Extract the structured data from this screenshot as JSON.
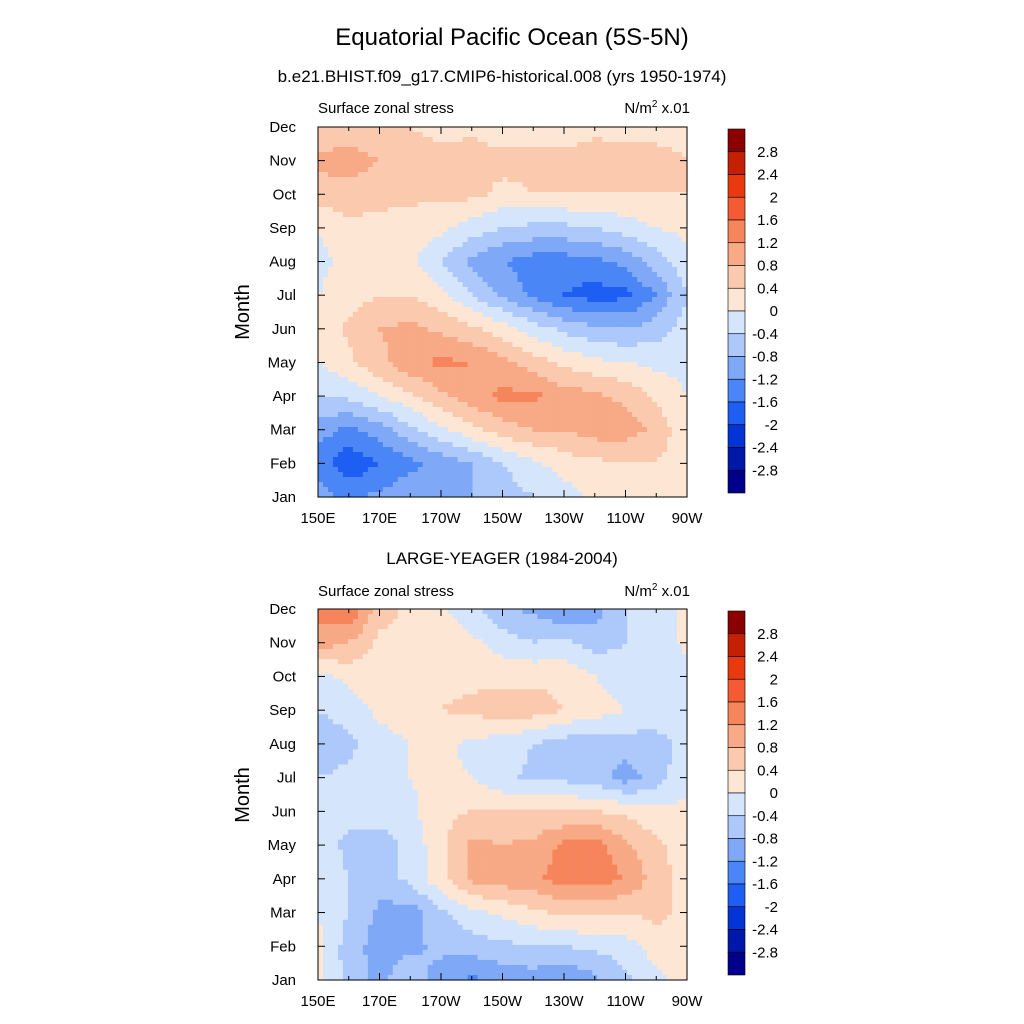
{
  "figure": {
    "title": "Equatorial Pacific Ocean (5S-5N)"
  },
  "palette": [
    "#00008b",
    "#0018a8",
    "#0433d6",
    "#1f5ef2",
    "#4a86f6",
    "#7fa9f7",
    "#adc8fa",
    "#d5e5fc",
    "#fde6d4",
    "#fbcaae",
    "#f8a985",
    "#f6855c",
    "#f45a34",
    "#e8390f",
    "#c42004",
    "#8b0000"
  ],
  "chart_data": [
    {
      "type": "heatmap",
      "subtitle": "b.e21.BHIST.f09_g17.CMIP6-historical.008 (yrs 1950-1974)",
      "left_label": "Surface zonal stress",
      "right_label_base": "N/m",
      "right_label_sup": "2",
      "right_label_scale": " x.01",
      "ylabel": "Month",
      "x_ticks": [
        "150E",
        "170E",
        "170W",
        "150W",
        "130W",
        "110W",
        "90W"
      ],
      "y_ticks": [
        "Jan",
        "Feb",
        "Mar",
        "Apr",
        "May",
        "Jun",
        "Jul",
        "Aug",
        "Sep",
        "Oct",
        "Nov",
        "Dec"
      ],
      "colorbar_levels": [
        "2.8",
        "2.4",
        "2",
        "1.6",
        "1.2",
        "0.8",
        "0.4",
        "0",
        "-0.4",
        "-0.8",
        "-1.2",
        "-1.6",
        "-2",
        "-2.4",
        "-2.8"
      ],
      "grid": {
        "x": [
          150,
          160,
          170,
          180,
          190,
          200,
          210,
          220,
          230,
          240,
          250,
          260,
          270
        ],
        "y": [
          "Jan",
          "Feb",
          "Mar",
          "Apr",
          "May",
          "Jun",
          "Jul",
          "Aug",
          "Sep",
          "Oct",
          "Nov",
          "Dec"
        ],
        "z": [
          [
            -1.0,
            -1.3,
            -1.1,
            -0.9,
            -0.9,
            -0.8,
            -0.6,
            -0.4,
            -0.2,
            0.1,
            0.3,
            0.3,
            0.1
          ],
          [
            -1.4,
            -1.9,
            -1.6,
            -1.3,
            -1.1,
            -0.8,
            -0.4,
            -0.1,
            0.2,
            0.3,
            0.4,
            0.4,
            0.1
          ],
          [
            -1.0,
            -1.3,
            -1.0,
            -0.5,
            -0.1,
            0.3,
            0.6,
            0.8,
            0.8,
            1.0,
            1.0,
            0.7,
            0.1
          ],
          [
            -0.4,
            -0.3,
            0.0,
            0.3,
            0.7,
            1.0,
            1.3,
            1.3,
            1.0,
            0.9,
            0.7,
            0.3,
            0.0
          ],
          [
            0.0,
            0.3,
            0.7,
            1.1,
            1.3,
            1.2,
            0.9,
            0.6,
            0.3,
            0.1,
            0.0,
            -0.1,
            -0.1
          ],
          [
            0.1,
            0.5,
            0.8,
            0.9,
            0.7,
            0.5,
            0.2,
            -0.2,
            -0.5,
            -0.7,
            -0.8,
            -0.6,
            -0.2
          ],
          [
            0.0,
            0.2,
            0.4,
            0.4,
            0.1,
            -0.4,
            -0.9,
            -1.3,
            -1.6,
            -1.8,
            -1.7,
            -1.2,
            -0.4
          ],
          [
            -0.1,
            0.1,
            0.2,
            0.1,
            -0.4,
            -0.9,
            -1.2,
            -1.4,
            -1.4,
            -1.3,
            -1.1,
            -0.6,
            -0.1
          ],
          [
            0.0,
            0.3,
            0.3,
            0.2,
            0.1,
            -0.2,
            -0.4,
            -0.5,
            -0.5,
            -0.4,
            -0.2,
            0.0,
            0.1
          ],
          [
            0.6,
            0.6,
            0.5,
            0.5,
            0.5,
            0.5,
            0.3,
            0.4,
            0.4,
            0.4,
            0.4,
            0.4,
            0.4
          ],
          [
            0.9,
            1.0,
            0.8,
            0.6,
            0.5,
            0.6,
            0.5,
            0.5,
            0.5,
            0.6,
            0.5,
            0.5,
            0.4
          ],
          [
            0.5,
            0.5,
            0.5,
            0.4,
            0.3,
            0.3,
            0.2,
            0.2,
            0.2,
            0.3,
            0.3,
            0.3,
            0.3
          ]
        ]
      }
    },
    {
      "type": "heatmap",
      "subtitle": "LARGE-YEAGER (1984-2004)",
      "left_label": "Surface zonal stress",
      "right_label_base": "N/m",
      "right_label_sup": "2",
      "right_label_scale": " x.01",
      "ylabel": "Month",
      "x_ticks": [
        "150E",
        "170E",
        "170W",
        "150W",
        "130W",
        "110W",
        "90W"
      ],
      "y_ticks": [
        "Jan",
        "Feb",
        "Mar",
        "Apr",
        "May",
        "Jun",
        "Jul",
        "Aug",
        "Sep",
        "Oct",
        "Nov",
        "Dec"
      ],
      "colorbar_levels": [
        "2.8",
        "2.4",
        "2",
        "1.6",
        "1.2",
        "0.8",
        "0.4",
        "0",
        "-0.4",
        "-0.8",
        "-1.2",
        "-1.6",
        "-2",
        "-2.4",
        "-2.8"
      ],
      "grid": {
        "x": [
          150,
          160,
          170,
          180,
          190,
          200,
          210,
          220,
          230,
          240,
          250,
          260,
          270
        ],
        "y": [
          "Jan",
          "Feb",
          "Mar",
          "Apr",
          "May",
          "Jun",
          "Jul",
          "Aug",
          "Sep",
          "Oct",
          "Nov",
          "Dec"
        ],
        "z": [
          [
            0.2,
            -0.6,
            -0.9,
            -0.5,
            -1.0,
            -1.3,
            -1.1,
            -1.0,
            -1.2,
            -0.9,
            -0.5,
            -0.1,
            0.1
          ],
          [
            0.1,
            -0.6,
            -1.0,
            -0.9,
            -0.7,
            -0.6,
            -0.5,
            -0.4,
            -0.4,
            -0.3,
            -0.2,
            0.2,
            0.3
          ],
          [
            0.0,
            -0.4,
            -0.9,
            -1.0,
            -0.5,
            -0.1,
            0.1,
            0.3,
            0.5,
            0.5,
            0.4,
            0.5,
            0.3
          ],
          [
            -0.1,
            -0.4,
            -0.6,
            -0.3,
            0.3,
            0.9,
            1.0,
            1.1,
            1.4,
            1.4,
            1.2,
            0.6,
            0.2
          ],
          [
            -0.2,
            -0.5,
            -0.6,
            -0.3,
            0.3,
            0.9,
            0.8,
            0.9,
            1.3,
            1.4,
            0.9,
            0.5,
            0.2
          ],
          [
            -0.2,
            -0.3,
            -0.2,
            -0.1,
            0.3,
            0.4,
            0.4,
            0.4,
            0.4,
            0.4,
            0.3,
            0.1,
            0.1
          ],
          [
            -0.4,
            -0.3,
            -0.1,
            0.0,
            0.1,
            0.0,
            -0.3,
            -0.5,
            -0.5,
            -0.6,
            -1.0,
            -0.6,
            -0.1
          ],
          [
            -0.7,
            -0.5,
            -0.2,
            0.0,
            0.1,
            -0.1,
            -0.2,
            -0.4,
            -0.6,
            -0.7,
            -0.6,
            -0.6,
            -0.2
          ],
          [
            -0.4,
            -0.2,
            0.1,
            0.3,
            0.4,
            0.5,
            0.6,
            0.6,
            0.4,
            0.2,
            0.0,
            -0.1,
            -0.1
          ],
          [
            -0.1,
            0.1,
            0.3,
            0.3,
            0.3,
            0.3,
            0.3,
            0.3,
            0.3,
            0.0,
            -0.2,
            -0.3,
            -0.1
          ],
          [
            1.0,
            0.8,
            0.3,
            0.2,
            0.2,
            0.1,
            -0.2,
            -0.4,
            -0.3,
            -0.6,
            -0.4,
            -0.3,
            0.1
          ],
          [
            1.4,
            1.6,
            0.6,
            0.3,
            0.1,
            -0.3,
            -0.7,
            -0.9,
            -1.2,
            -1.0,
            -0.4,
            -0.2,
            0.1
          ]
        ]
      }
    }
  ]
}
